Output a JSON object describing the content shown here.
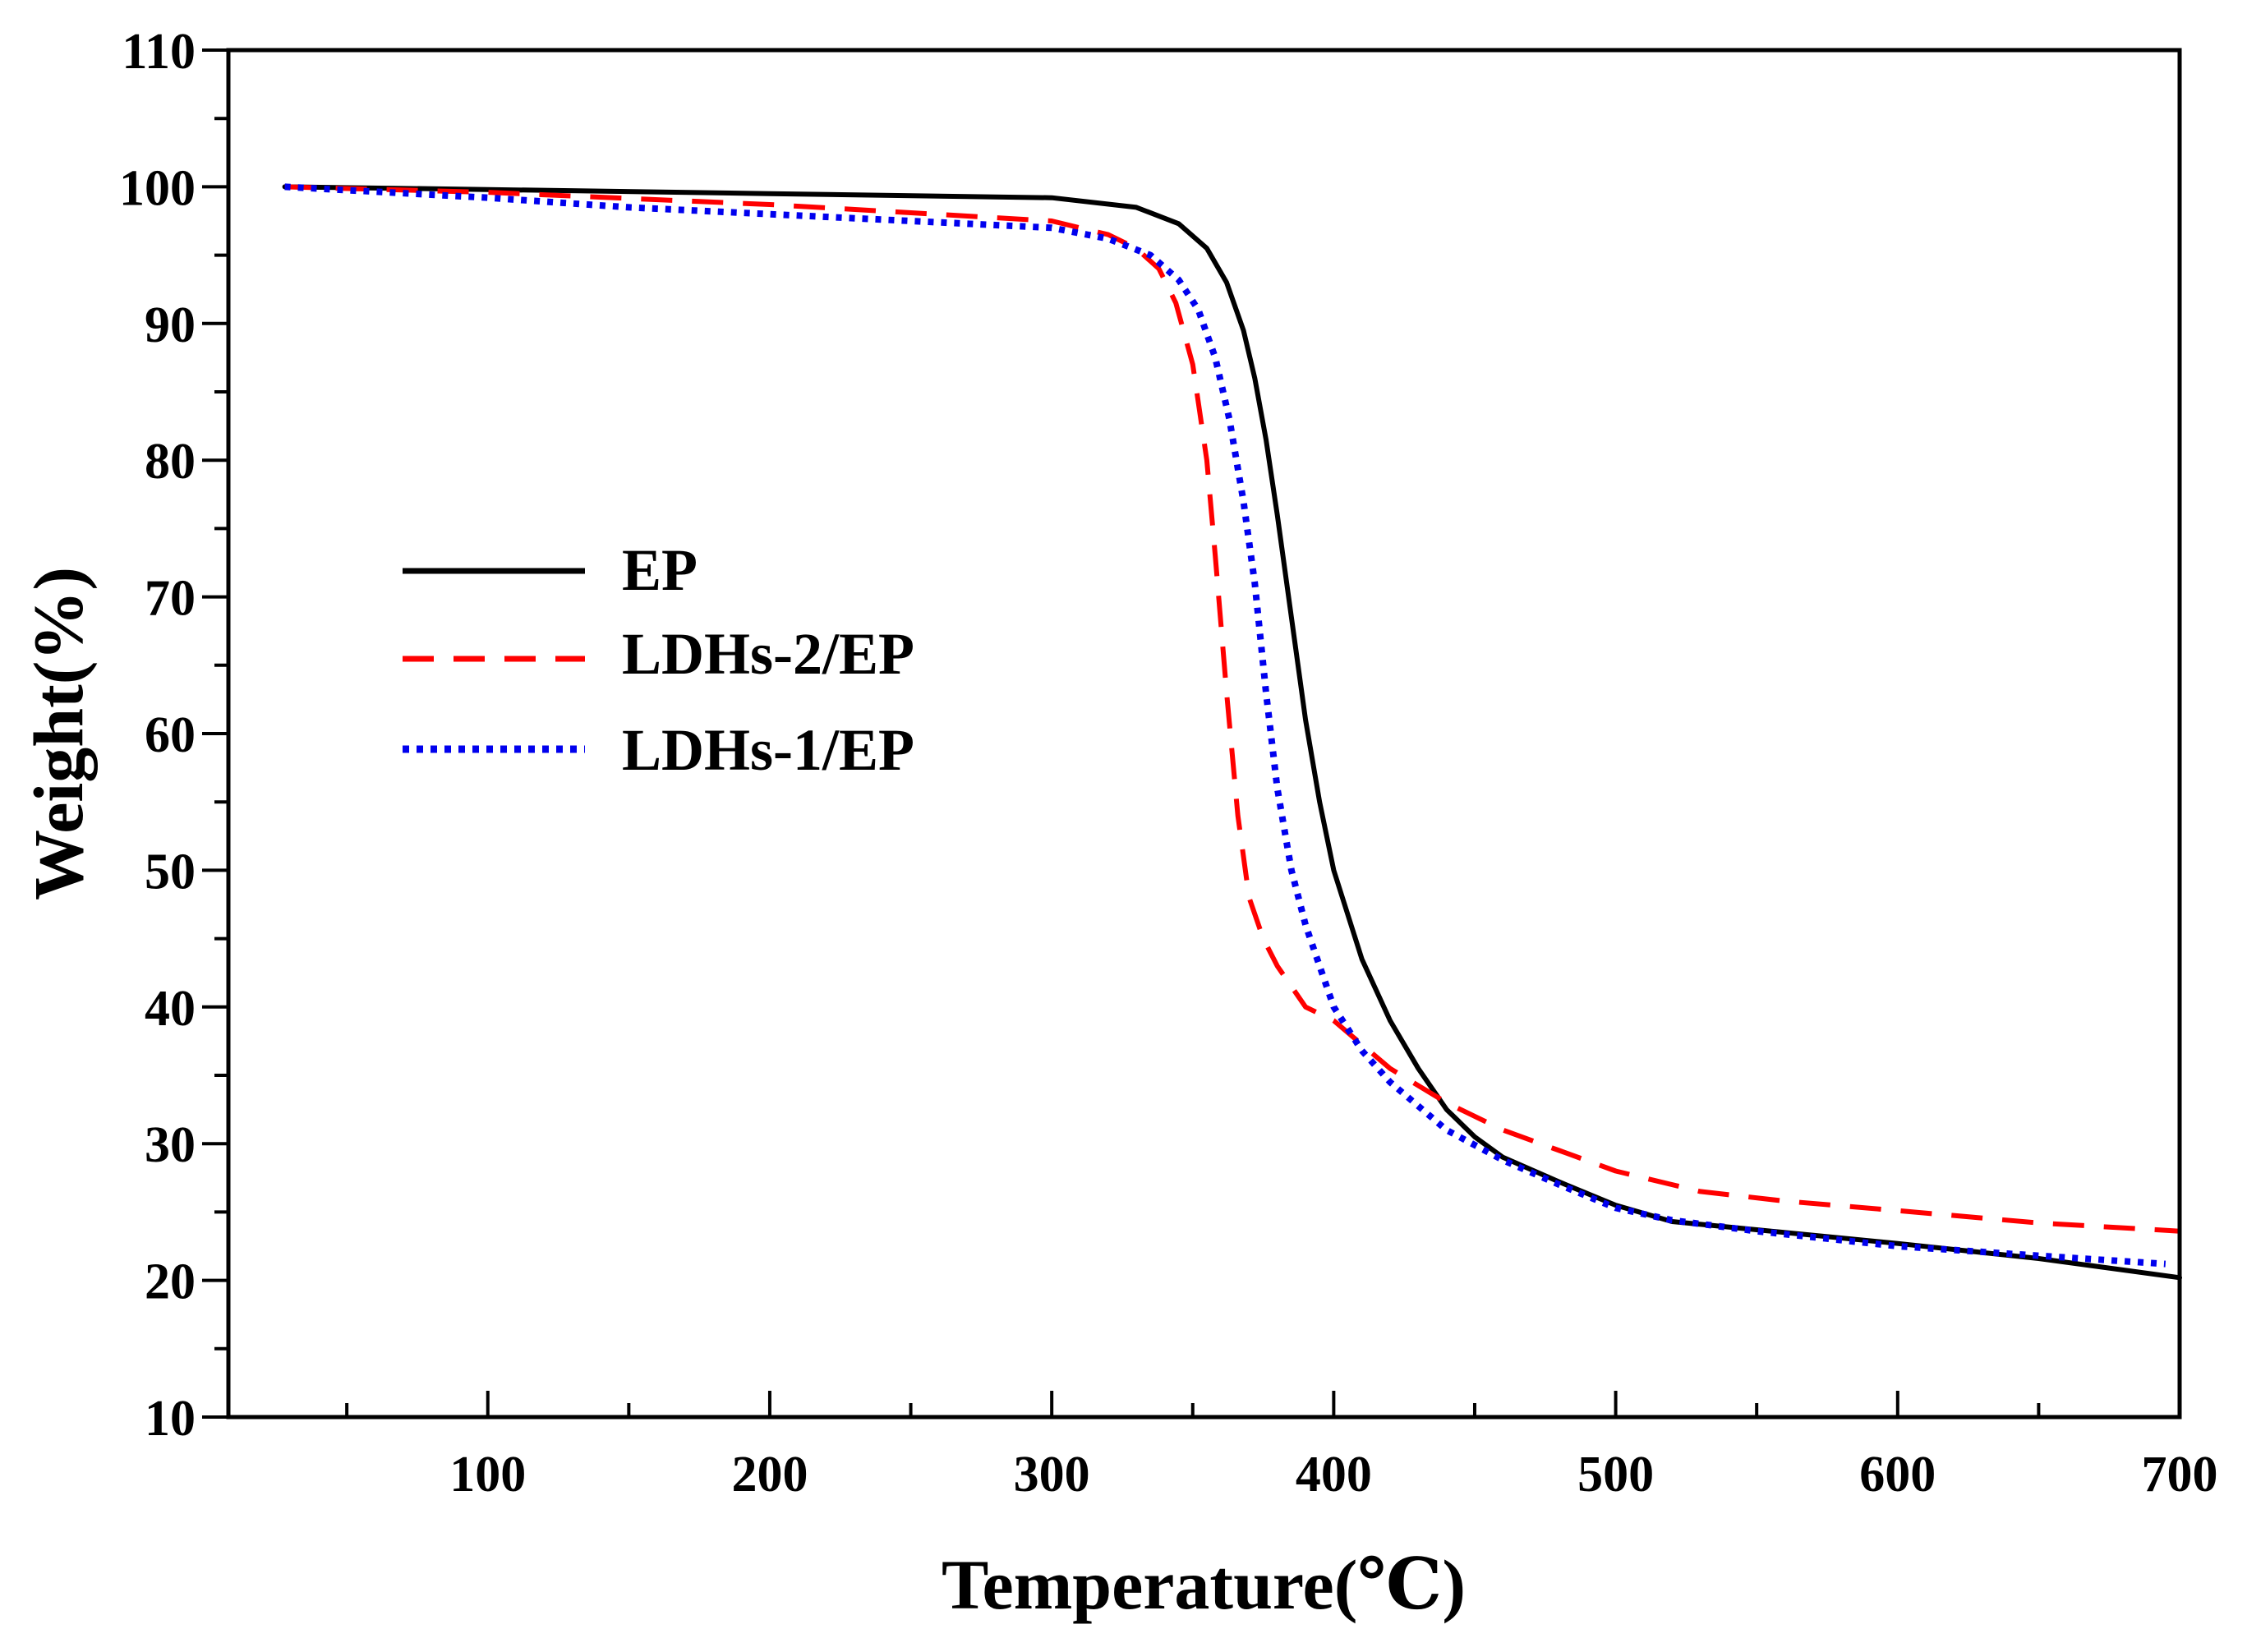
{
  "chart_data": {
    "type": "line",
    "title": "",
    "xlabel": "Temperature(℃)",
    "ylabel": "Weight(%)",
    "xlim": [
      8,
      700
    ],
    "ylim": [
      10,
      110
    ],
    "x_ticks": [
      100,
      200,
      300,
      400,
      500,
      600,
      700
    ],
    "x_minor_ticks": [
      50,
      150,
      250,
      350,
      450,
      550,
      650
    ],
    "y_ticks": [
      10,
      20,
      30,
      40,
      50,
      60,
      70,
      80,
      90,
      100,
      110
    ],
    "y_minor_ticks": [
      15,
      25,
      35,
      45,
      55,
      65,
      75,
      85,
      95,
      105
    ],
    "grid": false,
    "legend_position": "left-middle",
    "series": [
      {
        "name": "EP",
        "color": "#000000",
        "style": "solid",
        "x": [
          28,
          100,
          200,
          300,
          330,
          345,
          355,
          362,
          368,
          372,
          376,
          380,
          385,
          390,
          395,
          400,
          410,
          420,
          430,
          440,
          450,
          460,
          480,
          500,
          520,
          550,
          600,
          650,
          700
        ],
        "y": [
          100,
          99.8,
          99.5,
          99.2,
          98.5,
          97.3,
          95.5,
          93,
          89.5,
          86,
          81.5,
          76,
          68.5,
          61,
          55,
          50,
          43.5,
          39,
          35.5,
          32.5,
          30.5,
          29,
          27.2,
          25.5,
          24.3,
          23.7,
          22.7,
          21.6,
          20.2
        ]
      },
      {
        "name": "LDHs-2/EP",
        "color": "#ff0000",
        "style": "dashed",
        "x": [
          28,
          100,
          200,
          300,
          320,
          330,
          338,
          344,
          350,
          355,
          358,
          362,
          366,
          370,
          375,
          380,
          390,
          400,
          420,
          440,
          460,
          480,
          500,
          530,
          560,
          600,
          650,
          700
        ],
        "y": [
          100,
          99.6,
          98.7,
          97.5,
          96.5,
          95.5,
          94,
          91.5,
          87,
          80,
          73,
          63,
          54,
          48,
          45,
          43,
          40,
          39,
          35.5,
          33,
          31,
          29.5,
          28,
          26.5,
          25.8,
          25.1,
          24.2,
          23.6
        ]
      },
      {
        "name": "LDHs-1/EP",
        "color": "#0000ee",
        "style": "dotted",
        "x": [
          28,
          100,
          150,
          200,
          250,
          300,
          320,
          335,
          345,
          352,
          358,
          363,
          368,
          372,
          376,
          380,
          385,
          390,
          395,
          400,
          410,
          420,
          440,
          460,
          480,
          500,
          520,
          550,
          600,
          650,
          695
        ],
        "y": [
          100,
          99.2,
          98.5,
          98,
          97.5,
          97,
          96.2,
          95,
          93.2,
          91,
          87.5,
          83,
          77,
          71,
          63,
          56,
          50,
          46,
          43,
          40,
          36.8,
          34.5,
          31,
          28.8,
          27,
          25.3,
          24.4,
          23.6,
          22.5,
          21.8,
          21.2
        ]
      }
    ]
  }
}
